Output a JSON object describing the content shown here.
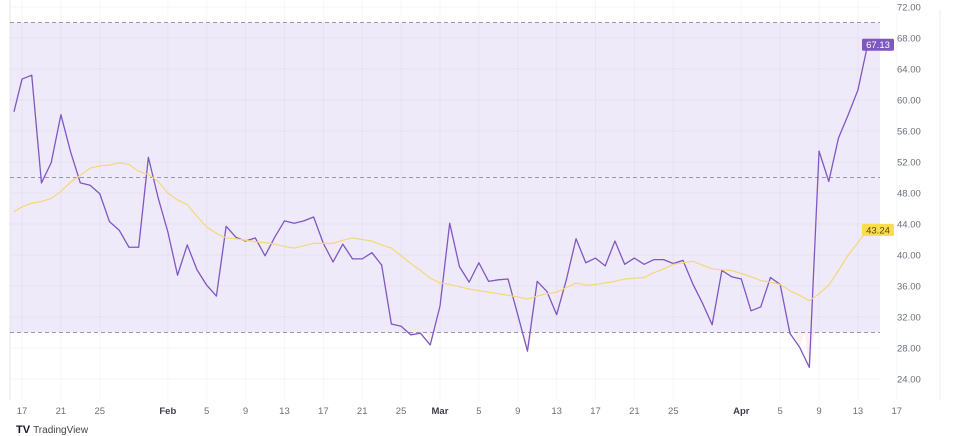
{
  "chart_data": {
    "type": "line",
    "title": "",
    "xlabel": "",
    "ylabel": "",
    "ylim": [
      20,
      72
    ],
    "y_ticks": [
      "72.00",
      "68.00",
      "64.00",
      "60.00",
      "56.00",
      "52.00",
      "48.00",
      "44.00",
      "40.00",
      "36.00",
      "32.00",
      "28.00",
      "24.00"
    ],
    "x_ticks": [
      {
        "label": "17",
        "date": "Jan 17",
        "bold": false
      },
      {
        "label": "21",
        "date": "Jan 21",
        "bold": false
      },
      {
        "label": "25",
        "date": "Jan 25",
        "bold": false
      },
      {
        "label": "Feb",
        "date": "Feb 1",
        "bold": true
      },
      {
        "label": "5",
        "date": "Feb 5",
        "bold": false
      },
      {
        "label": "9",
        "date": "Feb 9",
        "bold": false
      },
      {
        "label": "13",
        "date": "Feb 13",
        "bold": false
      },
      {
        "label": "17",
        "date": "Feb 17",
        "bold": false
      },
      {
        "label": "21",
        "date": "Feb 21",
        "bold": false
      },
      {
        "label": "25",
        "date": "Feb 25",
        "bold": false
      },
      {
        "label": "Mar",
        "date": "Mar 1",
        "bold": true
      },
      {
        "label": "5",
        "date": "Mar 5",
        "bold": false
      },
      {
        "label": "9",
        "date": "Mar 9",
        "bold": false
      },
      {
        "label": "13",
        "date": "Mar 13",
        "bold": false
      },
      {
        "label": "17",
        "date": "Mar 17",
        "bold": false
      },
      {
        "label": "21",
        "date": "Mar 21",
        "bold": false
      },
      {
        "label": "25",
        "date": "Mar 25",
        "bold": false
      },
      {
        "label": "Apr",
        "date": "Apr 1",
        "bold": true
      },
      {
        "label": "5",
        "date": "Apr 5",
        "bold": false
      },
      {
        "label": "9",
        "date": "Apr 9",
        "bold": false
      },
      {
        "label": "13",
        "date": "Apr 13",
        "bold": false
      },
      {
        "label": "17",
        "date": "Apr 17",
        "bold": false
      }
    ],
    "x_start": "Jan 16",
    "x_end": "Apr 14",
    "grid": true,
    "bands": {
      "upper": 70,
      "middle": 50,
      "lower": 30
    },
    "series": [
      {
        "key": "rsi",
        "color": "#7e57c2",
        "last_value_label": "67.13",
        "values": [
          58.5,
          62.7,
          63.2,
          49.3,
          51.9,
          58.1,
          53.3,
          49.3,
          49.0,
          47.9,
          44.3,
          43.2,
          41.0,
          41.0,
          52.6,
          47.4,
          43.0,
          37.4,
          41.3,
          38.1,
          36.1,
          34.7,
          43.7,
          42.3,
          41.8,
          42.2,
          39.9,
          42.3,
          44.4,
          44.1,
          44.4,
          44.9,
          41.5,
          39.1,
          41.4,
          39.5,
          39.5,
          40.3,
          38.7,
          31.1,
          30.8,
          29.7,
          29.9,
          28.4,
          33.4,
          44.1,
          38.5,
          36.5,
          39.0,
          36.6,
          36.8,
          36.9,
          32.3,
          27.6,
          36.6,
          35.3,
          32.3,
          36.8,
          42.1,
          39.0,
          39.6,
          38.6,
          41.8,
          38.8,
          39.6,
          38.8,
          39.4,
          39.4,
          38.9,
          39.3,
          36.3,
          33.8,
          31.0,
          38.0,
          37.2,
          36.9,
          32.8,
          33.3,
          37.1,
          36.2,
          29.9,
          28.1,
          25.5,
          53.4,
          49.5,
          55.1,
          58.1,
          61.3,
          67.13
        ]
      },
      {
        "key": "rsi_ma",
        "color": "#f5d77a",
        "last_value_label": "43.24",
        "values": [
          45.6,
          46.2,
          46.7,
          46.9,
          47.3,
          48.2,
          49.4,
          50.3,
          51.2,
          51.5,
          51.6,
          51.9,
          51.7,
          50.8,
          50.4,
          49.5,
          48.0,
          47.1,
          46.5,
          45.0,
          43.6,
          42.8,
          42.2,
          42.1,
          41.9,
          41.7,
          41.6,
          41.4,
          41.1,
          40.9,
          41.2,
          41.5,
          41.5,
          41.5,
          41.9,
          42.2,
          42.0,
          41.8,
          41.3,
          40.9,
          39.9,
          38.9,
          38.0,
          37.0,
          36.4,
          36.2,
          35.9,
          35.6,
          35.4,
          35.2,
          35.0,
          34.8,
          34.6,
          34.3,
          34.7,
          35.0,
          35.2,
          35.8,
          36.4,
          36.1,
          36.2,
          36.4,
          36.6,
          36.9,
          37.0,
          37.1,
          37.7,
          38.2,
          38.8,
          39.0,
          39.2,
          38.7,
          38.2,
          38.1,
          38.0,
          37.6,
          37.2,
          36.7,
          36.5,
          36.2,
          35.4,
          34.8,
          34.1,
          35.0,
          36.1,
          38.0,
          40.0,
          41.6,
          43.24
        ]
      }
    ],
    "band_fill": "#efeaf9",
    "rsi_label_bg": "#7e57c2",
    "ma_label_bg": "#fbdc4a"
  },
  "branding": {
    "logo": "TV",
    "name": "TradingView"
  }
}
